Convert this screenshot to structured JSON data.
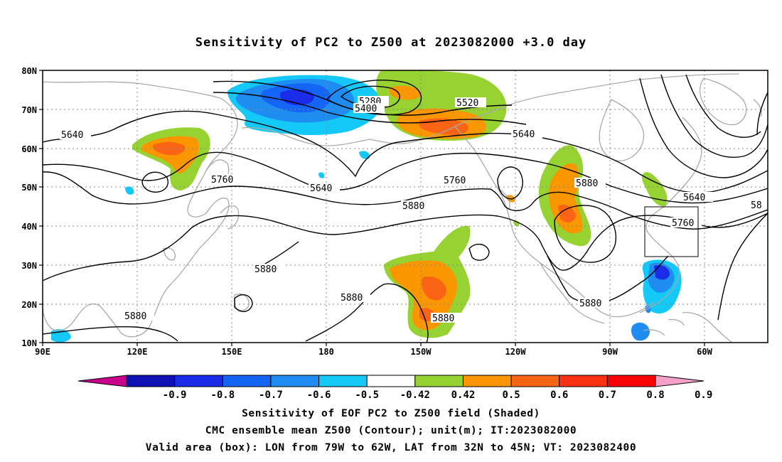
{
  "title": "Sensitivity of PC2 to Z500 at 2023082000 +3.0 day",
  "map": {
    "lat_labels": [
      "80N",
      "70N",
      "60N",
      "50N",
      "40N",
      "30N",
      "20N",
      "10N"
    ],
    "lon_labels": [
      "90E",
      "120E",
      "150E",
      "180",
      "150W",
      "120W",
      "90W",
      "60W"
    ],
    "contour_labels": [
      {
        "text": "5280"
      },
      {
        "text": "5400"
      },
      {
        "text": "5520"
      },
      {
        "text": "5640"
      },
      {
        "text": "5640"
      },
      {
        "text": "5640"
      },
      {
        "text": "5640"
      },
      {
        "text": "5760"
      },
      {
        "text": "5760"
      },
      {
        "text": "5760"
      },
      {
        "text": "5880"
      },
      {
        "text": "5880"
      },
      {
        "text": "5880"
      },
      {
        "text": "5880"
      },
      {
        "text": "5880"
      },
      {
        "text": "5880"
      },
      {
        "text": "58"
      }
    ],
    "valid_box": {
      "lon_from": "79W",
      "lon_to": "62W",
      "lat_from": "32N",
      "lat_to": "45N"
    }
  },
  "colorbar": {
    "labels": [
      "-0.9",
      "-0.8",
      "-0.7",
      "-0.6",
      "-0.5",
      "-0.42",
      "0.42",
      "0.5",
      "0.6",
      "0.7",
      "0.8",
      "0.9"
    ],
    "colors": [
      "#c8008c",
      "#1010b4",
      "#1a2ce8",
      "#1464f5",
      "#1e8cf0",
      "#14c8f8",
      "#ffffff",
      "#96d232",
      "#fa9600",
      "#fa6414",
      "#fa3214",
      "#fa0000",
      "#f4a0c8"
    ]
  },
  "captions": [
    "Sensitivity of EOF PC2 to Z500 field (Shaded)",
    "CMC ensemble mean Z500 (Contour); unit(m); IT:2023082000",
    "Valid area (box): LON from 79W to 62W, LAT from 32N to 45N; VT: 2023082400"
  ]
}
